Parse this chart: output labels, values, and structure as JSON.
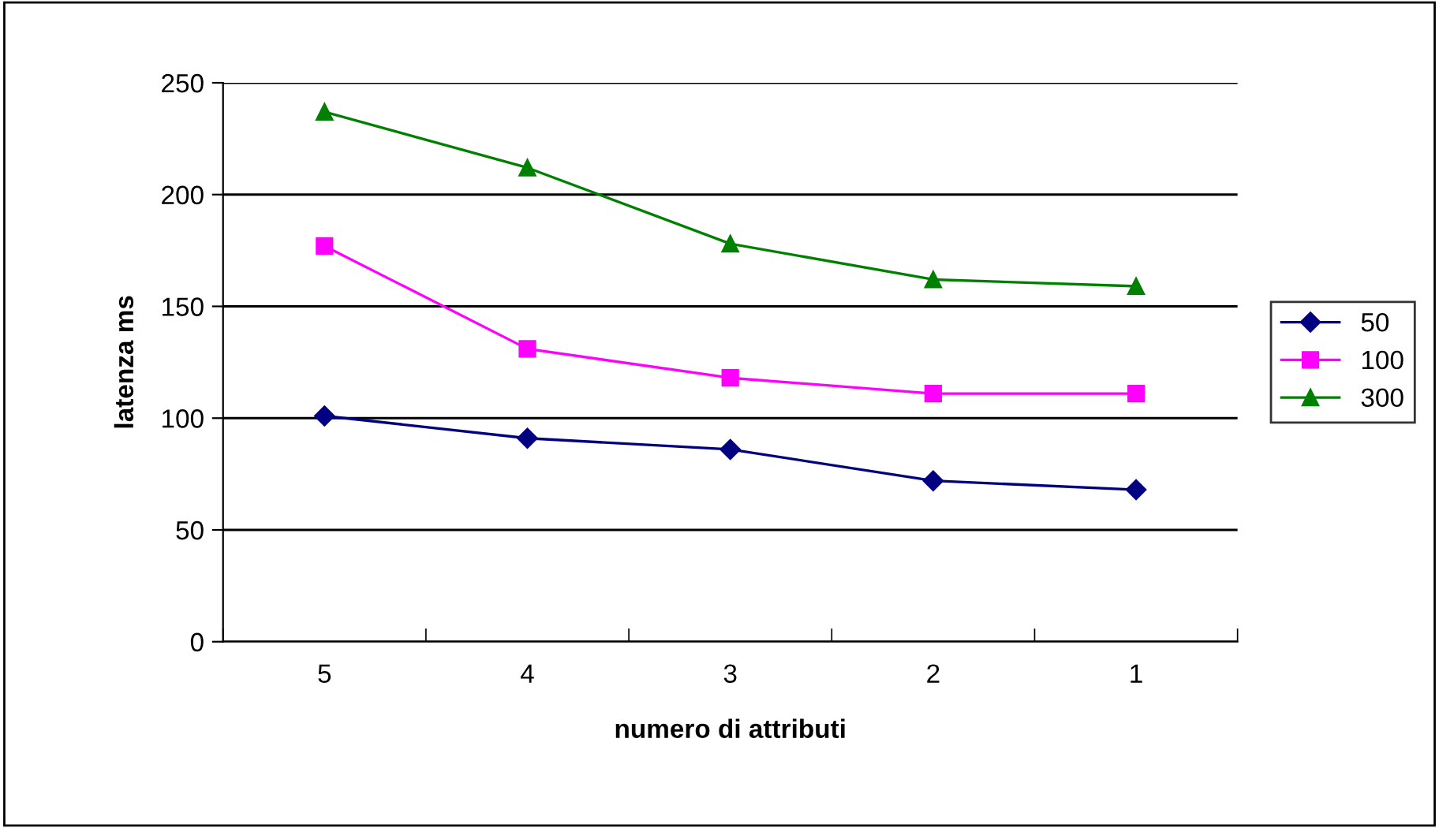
{
  "chart_data": {
    "type": "line",
    "xlabel": "numero di attributi",
    "ylabel": "latenza ms",
    "categories": [
      "5",
      "4",
      "3",
      "2",
      "1"
    ],
    "series": [
      {
        "name": "50",
        "color": "#000080",
        "marker": "diamond",
        "values": [
          101,
          91,
          86,
          72,
          68
        ]
      },
      {
        "name": "100",
        "color": "#ff00ff",
        "marker": "square",
        "values": [
          177,
          131,
          118,
          111,
          111
        ]
      },
      {
        "name": "300",
        "color": "#008000",
        "marker": "triangle",
        "values": [
          237,
          212,
          178,
          162,
          159
        ]
      }
    ],
    "ylim": [
      0,
      250
    ],
    "yticks": [
      0,
      50,
      100,
      150,
      200,
      250
    ],
    "grid": "y",
    "legend": "right",
    "line_style": "solid"
  }
}
